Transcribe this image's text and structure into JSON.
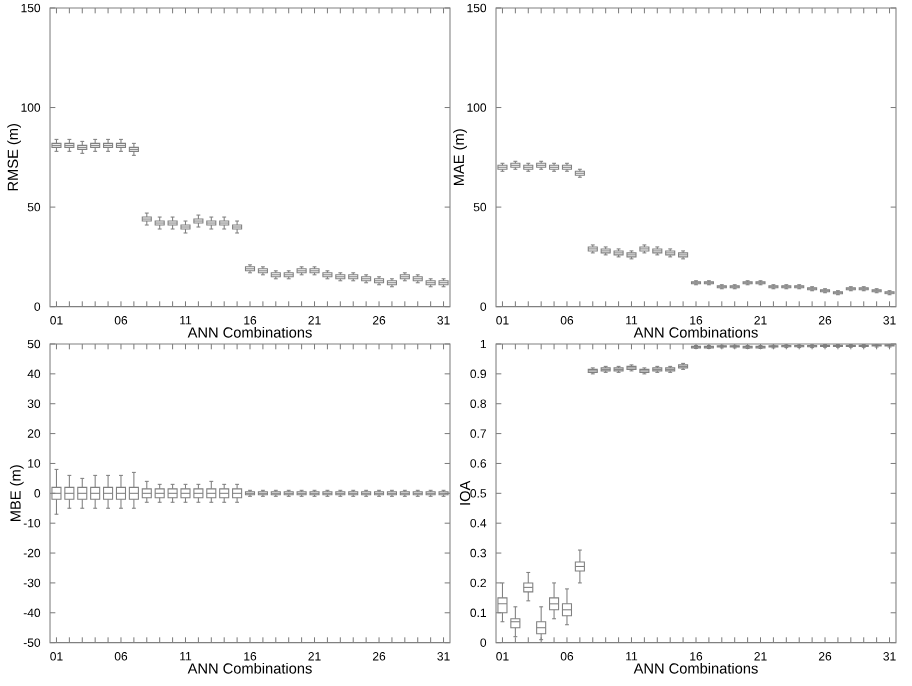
{
  "chart_data": [
    {
      "type": "box",
      "xlabel": "ANN Combinations",
      "ylabel": "RMSE (m)",
      "color": "#808080",
      "ylim": [
        0,
        150
      ],
      "yticks": [
        0,
        50,
        100,
        150
      ],
      "categories": [
        "01",
        null,
        null,
        null,
        null,
        "06",
        null,
        null,
        null,
        null,
        "11",
        null,
        null,
        null,
        null,
        "16",
        null,
        null,
        null,
        null,
        "21",
        null,
        null,
        null,
        null,
        "26",
        null,
        null,
        null,
        null,
        "31"
      ],
      "boxes": [
        {
          "low": 78,
          "q1": 80,
          "median": 81,
          "q3": 82,
          "high": 84
        },
        {
          "low": 78,
          "q1": 80,
          "median": 81,
          "q3": 82,
          "high": 84
        },
        {
          "low": 77,
          "q1": 79,
          "median": 80,
          "q3": 81,
          "high": 83
        },
        {
          "low": 78,
          "q1": 80,
          "median": 81,
          "q3": 82,
          "high": 84
        },
        {
          "low": 78,
          "q1": 80,
          "median": 81,
          "q3": 82,
          "high": 84
        },
        {
          "low": 78,
          "q1": 80,
          "median": 81,
          "q3": 82,
          "high": 84
        },
        {
          "low": 76,
          "q1": 78,
          "median": 79,
          "q3": 80,
          "high": 82
        },
        {
          "low": 41,
          "q1": 43,
          "median": 44,
          "q3": 45,
          "high": 47
        },
        {
          "low": 39,
          "q1": 41,
          "median": 42,
          "q3": 43,
          "high": 45
        },
        {
          "low": 39,
          "q1": 41,
          "median": 42,
          "q3": 43,
          "high": 45
        },
        {
          "low": 37,
          "q1": 39,
          "median": 40,
          "q3": 41,
          "high": 43
        },
        {
          "low": 40,
          "q1": 42,
          "median": 43,
          "q3": 44,
          "high": 46
        },
        {
          "low": 39,
          "q1": 41,
          "median": 42,
          "q3": 43,
          "high": 45
        },
        {
          "low": 39,
          "q1": 41,
          "median": 42,
          "q3": 43,
          "high": 45
        },
        {
          "low": 37,
          "q1": 39,
          "median": 40,
          "q3": 41,
          "high": 43
        },
        {
          "low": 17,
          "q1": 18,
          "median": 19,
          "q3": 20,
          "high": 21
        },
        {
          "low": 16,
          "q1": 17,
          "median": 18,
          "q3": 19,
          "high": 20
        },
        {
          "low": 14,
          "q1": 15,
          "median": 16,
          "q3": 17,
          "high": 18
        },
        {
          "low": 14,
          "q1": 15,
          "median": 16,
          "q3": 17,
          "high": 18
        },
        {
          "low": 16,
          "q1": 17,
          "median": 18,
          "q3": 19,
          "high": 20
        },
        {
          "low": 16,
          "q1": 17,
          "median": 18,
          "q3": 19,
          "high": 20
        },
        {
          "low": 14,
          "q1": 15,
          "median": 16,
          "q3": 17,
          "high": 18
        },
        {
          "low": 13,
          "q1": 14,
          "median": 15,
          "q3": 16,
          "high": 17
        },
        {
          "low": 13,
          "q1": 14,
          "median": 15,
          "q3": 16,
          "high": 17
        },
        {
          "low": 12,
          "q1": 13,
          "median": 14,
          "q3": 15,
          "high": 16
        },
        {
          "low": 11,
          "q1": 12,
          "median": 13,
          "q3": 14,
          "high": 15
        },
        {
          "low": 10,
          "q1": 11,
          "median": 12,
          "q3": 13,
          "high": 14
        },
        {
          "low": 13,
          "q1": 14,
          "median": 15,
          "q3": 16,
          "high": 17
        },
        {
          "low": 12,
          "q1": 13,
          "median": 14,
          "q3": 15,
          "high": 16
        },
        {
          "low": 10,
          "q1": 11,
          "median": 12,
          "q3": 13,
          "high": 14
        },
        {
          "low": 10,
          "q1": 11,
          "median": 12,
          "q3": 13,
          "high": 14
        }
      ]
    },
    {
      "type": "box",
      "xlabel": "ANN Combinations",
      "ylabel": "MAE (m)",
      "color": "#808080",
      "ylim": [
        0,
        150
      ],
      "yticks": [
        0,
        50,
        100,
        150
      ],
      "categories": [
        "01",
        null,
        null,
        null,
        null,
        "06",
        null,
        null,
        null,
        null,
        "11",
        null,
        null,
        null,
        null,
        "16",
        null,
        null,
        null,
        null,
        "21",
        null,
        null,
        null,
        null,
        "26",
        null,
        null,
        null,
        null,
        "31"
      ],
      "boxes": [
        {
          "low": 68,
          "q1": 69,
          "median": 70,
          "q3": 71,
          "high": 72
        },
        {
          "low": 69,
          "q1": 70,
          "median": 71,
          "q3": 72,
          "high": 73
        },
        {
          "low": 68,
          "q1": 69,
          "median": 70,
          "q3": 71,
          "high": 72
        },
        {
          "low": 69,
          "q1": 70,
          "median": 71,
          "q3": 72,
          "high": 73
        },
        {
          "low": 68,
          "q1": 69,
          "median": 70,
          "q3": 71,
          "high": 72
        },
        {
          "low": 68,
          "q1": 69,
          "median": 70,
          "q3": 71,
          "high": 72
        },
        {
          "low": 65,
          "q1": 66,
          "median": 67,
          "q3": 68,
          "high": 69
        },
        {
          "low": 27,
          "q1": 28,
          "median": 29,
          "q3": 30,
          "high": 31
        },
        {
          "low": 26,
          "q1": 27,
          "median": 28,
          "q3": 29,
          "high": 30
        },
        {
          "low": 25,
          "q1": 26,
          "median": 27,
          "q3": 28,
          "high": 29
        },
        {
          "low": 24,
          "q1": 25,
          "median": 26,
          "q3": 27,
          "high": 28
        },
        {
          "low": 27,
          "q1": 28,
          "median": 29,
          "q3": 30,
          "high": 31
        },
        {
          "low": 26,
          "q1": 27,
          "median": 28,
          "q3": 29,
          "high": 30
        },
        {
          "low": 25,
          "q1": 26,
          "median": 27,
          "q3": 28,
          "high": 29
        },
        {
          "low": 24,
          "q1": 25,
          "median": 26,
          "q3": 27,
          "high": 28
        },
        {
          "low": 11,
          "q1": 11.5,
          "median": 12,
          "q3": 12.5,
          "high": 13
        },
        {
          "low": 11,
          "q1": 11.5,
          "median": 12,
          "q3": 12.5,
          "high": 13
        },
        {
          "low": 9,
          "q1": 9.5,
          "median": 10,
          "q3": 10.5,
          "high": 11
        },
        {
          "low": 9,
          "q1": 9.5,
          "median": 10,
          "q3": 10.5,
          "high": 11
        },
        {
          "low": 11,
          "q1": 11.5,
          "median": 12,
          "q3": 12.5,
          "high": 13
        },
        {
          "low": 11,
          "q1": 11.5,
          "median": 12,
          "q3": 12.5,
          "high": 13
        },
        {
          "low": 9,
          "q1": 9.5,
          "median": 10,
          "q3": 10.5,
          "high": 11
        },
        {
          "low": 9,
          "q1": 9.5,
          "median": 10,
          "q3": 10.5,
          "high": 11
        },
        {
          "low": 9,
          "q1": 9.5,
          "median": 10,
          "q3": 10.5,
          "high": 11
        },
        {
          "low": 8,
          "q1": 8.5,
          "median": 9,
          "q3": 9.5,
          "high": 10
        },
        {
          "low": 7,
          "q1": 7.5,
          "median": 8,
          "q3": 8.5,
          "high": 9
        },
        {
          "low": 6,
          "q1": 6.5,
          "median": 7,
          "q3": 7.5,
          "high": 8
        },
        {
          "low": 8,
          "q1": 8.5,
          "median": 9,
          "q3": 9.5,
          "high": 10
        },
        {
          "low": 8,
          "q1": 8.5,
          "median": 9,
          "q3": 9.5,
          "high": 10
        },
        {
          "low": 7,
          "q1": 7.5,
          "median": 8,
          "q3": 8.5,
          "high": 9
        },
        {
          "low": 6,
          "q1": 6.5,
          "median": 7,
          "q3": 7.5,
          "high": 8
        }
      ]
    },
    {
      "type": "box",
      "xlabel": "ANN Combinations",
      "ylabel": "MBE (m)",
      "color": "#808080",
      "ylim": [
        -50,
        50
      ],
      "yticks": [
        -50,
        -40,
        -30,
        -20,
        -10,
        0,
        10,
        20,
        30,
        40,
        50
      ],
      "categories": [
        "01",
        null,
        null,
        null,
        null,
        "06",
        null,
        null,
        null,
        null,
        "11",
        null,
        null,
        null,
        null,
        "16",
        null,
        null,
        null,
        null,
        "21",
        null,
        null,
        null,
        null,
        "26",
        null,
        null,
        null,
        null,
        "31"
      ],
      "boxes": [
        {
          "low": -7,
          "q1": -2,
          "median": 0,
          "q3": 2,
          "high": 8
        },
        {
          "low": -5,
          "q1": -2,
          "median": 0,
          "q3": 2,
          "high": 6
        },
        {
          "low": -5,
          "q1": -2,
          "median": 0,
          "q3": 2,
          "high": 5
        },
        {
          "low": -5,
          "q1": -2,
          "median": 0,
          "q3": 2,
          "high": 6
        },
        {
          "low": -5,
          "q1": -2,
          "median": 0,
          "q3": 2,
          "high": 6
        },
        {
          "low": -5,
          "q1": -2,
          "median": 0,
          "q3": 2,
          "high": 6
        },
        {
          "low": -5,
          "q1": -2,
          "median": 0,
          "q3": 2,
          "high": 7
        },
        {
          "low": -3,
          "q1": -1.5,
          "median": 0,
          "q3": 1.5,
          "high": 4
        },
        {
          "low": -3,
          "q1": -1.5,
          "median": 0,
          "q3": 1.5,
          "high": 3
        },
        {
          "low": -3,
          "q1": -1.5,
          "median": 0,
          "q3": 1.5,
          "high": 3
        },
        {
          "low": -3,
          "q1": -1.5,
          "median": 0,
          "q3": 1.5,
          "high": 3
        },
        {
          "low": -3,
          "q1": -1.5,
          "median": 0,
          "q3": 1.5,
          "high": 3
        },
        {
          "low": -3,
          "q1": -1.5,
          "median": 0,
          "q3": 1.5,
          "high": 4
        },
        {
          "low": -3,
          "q1": -1.5,
          "median": 0,
          "q3": 1.5,
          "high": 3
        },
        {
          "low": -3,
          "q1": -1.5,
          "median": 0,
          "q3": 1.5,
          "high": 3
        },
        {
          "low": -1,
          "q1": -0.5,
          "median": 0,
          "q3": 0.5,
          "high": 1
        },
        {
          "low": -1,
          "q1": -0.5,
          "median": 0,
          "q3": 0.5,
          "high": 1
        },
        {
          "low": -1,
          "q1": -0.5,
          "median": 0,
          "q3": 0.5,
          "high": 1
        },
        {
          "low": -1,
          "q1": -0.5,
          "median": 0,
          "q3": 0.5,
          "high": 1
        },
        {
          "low": -1,
          "q1": -0.5,
          "median": 0,
          "q3": 0.5,
          "high": 1
        },
        {
          "low": -1,
          "q1": -0.5,
          "median": 0,
          "q3": 0.5,
          "high": 1
        },
        {
          "low": -1,
          "q1": -0.5,
          "median": 0,
          "q3": 0.5,
          "high": 1
        },
        {
          "low": -1,
          "q1": -0.5,
          "median": 0,
          "q3": 0.5,
          "high": 1
        },
        {
          "low": -1,
          "q1": -0.5,
          "median": 0,
          "q3": 0.5,
          "high": 1
        },
        {
          "low": -1,
          "q1": -0.5,
          "median": 0,
          "q3": 0.5,
          "high": 1
        },
        {
          "low": -1,
          "q1": -0.5,
          "median": 0,
          "q3": 0.5,
          "high": 1
        },
        {
          "low": -1,
          "q1": -0.5,
          "median": 0,
          "q3": 0.5,
          "high": 1
        },
        {
          "low": -1,
          "q1": -0.5,
          "median": 0,
          "q3": 0.5,
          "high": 1
        },
        {
          "low": -1,
          "q1": -0.5,
          "median": 0,
          "q3": 0.5,
          "high": 1
        },
        {
          "low": -1,
          "q1": -0.5,
          "median": 0,
          "q3": 0.5,
          "high": 1
        },
        {
          "low": -1,
          "q1": -0.5,
          "median": 0,
          "q3": 0.5,
          "high": 1
        }
      ]
    },
    {
      "type": "box",
      "xlabel": "ANN Combinations",
      "ylabel": "IOA",
      "color": "#808080",
      "ylim": [
        0,
        1
      ],
      "yticks": [
        0,
        0.1,
        0.2,
        0.3,
        0.4,
        0.5,
        0.6,
        0.7,
        0.8,
        0.9,
        1
      ],
      "categories": [
        "01",
        null,
        null,
        null,
        null,
        "06",
        null,
        null,
        null,
        null,
        "11",
        null,
        null,
        null,
        null,
        "16",
        null,
        null,
        null,
        null,
        "21",
        null,
        null,
        null,
        null,
        "26",
        null,
        null,
        null,
        null,
        "31"
      ],
      "boxes": [
        {
          "low": 0.07,
          "q1": 0.1,
          "median": 0.13,
          "q3": 0.15,
          "high": 0.2
        },
        {
          "low": 0.02,
          "q1": 0.05,
          "median": 0.07,
          "q3": 0.08,
          "high": 0.12
        },
        {
          "low": 0.14,
          "q1": 0.17,
          "median": 0.185,
          "q3": 0.2,
          "high": 0.235
        },
        {
          "low": 0.01,
          "q1": 0.03,
          "median": 0.05,
          "q3": 0.07,
          "high": 0.12
        },
        {
          "low": 0.08,
          "q1": 0.11,
          "median": 0.13,
          "q3": 0.15,
          "high": 0.2
        },
        {
          "low": 0.06,
          "q1": 0.09,
          "median": 0.11,
          "q3": 0.13,
          "high": 0.18
        },
        {
          "low": 0.2,
          "q1": 0.24,
          "median": 0.255,
          "q3": 0.27,
          "high": 0.31
        },
        {
          "low": 0.9,
          "q1": 0.905,
          "median": 0.91,
          "q3": 0.915,
          "high": 0.92
        },
        {
          "low": 0.905,
          "q1": 0.91,
          "median": 0.915,
          "q3": 0.92,
          "high": 0.925
        },
        {
          "low": 0.905,
          "q1": 0.91,
          "median": 0.915,
          "q3": 0.92,
          "high": 0.925
        },
        {
          "low": 0.91,
          "q1": 0.915,
          "median": 0.92,
          "q3": 0.925,
          "high": 0.93
        },
        {
          "low": 0.9,
          "q1": 0.905,
          "median": 0.91,
          "q3": 0.915,
          "high": 0.92
        },
        {
          "low": 0.905,
          "q1": 0.91,
          "median": 0.915,
          "q3": 0.92,
          "high": 0.925
        },
        {
          "low": 0.905,
          "q1": 0.91,
          "median": 0.915,
          "q3": 0.92,
          "high": 0.925
        },
        {
          "low": 0.915,
          "q1": 0.92,
          "median": 0.925,
          "q3": 0.93,
          "high": 0.935
        },
        {
          "low": 0.985,
          "q1": 0.987,
          "median": 0.99,
          "q3": 0.992,
          "high": 0.995
        },
        {
          "low": 0.985,
          "q1": 0.987,
          "median": 0.99,
          "q3": 0.992,
          "high": 0.995
        },
        {
          "low": 0.987,
          "q1": 0.99,
          "median": 0.992,
          "q3": 0.994,
          "high": 0.996
        },
        {
          "low": 0.987,
          "q1": 0.99,
          "median": 0.992,
          "q3": 0.994,
          "high": 0.996
        },
        {
          "low": 0.985,
          "q1": 0.987,
          "median": 0.99,
          "q3": 0.992,
          "high": 0.995
        },
        {
          "low": 0.985,
          "q1": 0.987,
          "median": 0.99,
          "q3": 0.992,
          "high": 0.995
        },
        {
          "low": 0.987,
          "q1": 0.99,
          "median": 0.992,
          "q3": 0.994,
          "high": 0.996
        },
        {
          "low": 0.988,
          "q1": 0.991,
          "median": 0.993,
          "q3": 0.995,
          "high": 0.997
        },
        {
          "low": 0.988,
          "q1": 0.991,
          "median": 0.993,
          "q3": 0.995,
          "high": 0.997
        },
        {
          "low": 0.988,
          "q1": 0.991,
          "median": 0.993,
          "q3": 0.995,
          "high": 0.997
        },
        {
          "low": 0.989,
          "q1": 0.992,
          "median": 0.994,
          "q3": 0.996,
          "high": 0.998
        },
        {
          "low": 0.989,
          "q1": 0.992,
          "median": 0.994,
          "q3": 0.996,
          "high": 0.998
        },
        {
          "low": 0.989,
          "q1": 0.992,
          "median": 0.994,
          "q3": 0.996,
          "high": 0.998
        },
        {
          "low": 0.989,
          "q1": 0.992,
          "median": 0.994,
          "q3": 0.996,
          "high": 0.998
        },
        {
          "low": 0.99,
          "q1": 0.993,
          "median": 0.995,
          "q3": 0.997,
          "high": 0.999
        },
        {
          "low": 0.99,
          "q1": 0.993,
          "median": 0.995,
          "q3": 0.997,
          "high": 0.999
        }
      ]
    }
  ]
}
